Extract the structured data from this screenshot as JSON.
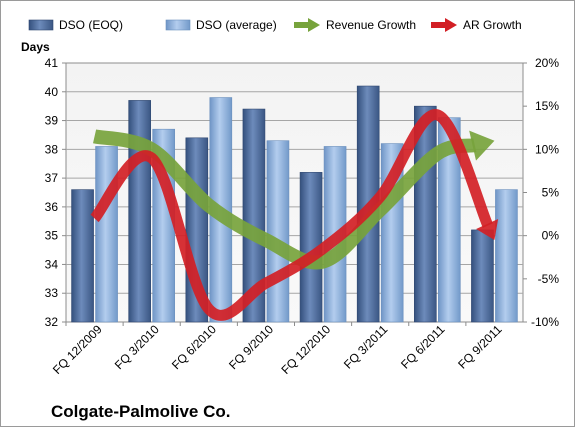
{
  "chart_data": {
    "type": "bar",
    "ylabel": "Days",
    "caption": "Colgate-Palmolive Co.",
    "categories": [
      "FQ 12/2009",
      "FQ 3/2010",
      "FQ 6/2010",
      "FQ 9/2010",
      "FQ 12/2010",
      "FQ 3/2011",
      "FQ 6/2011",
      "FQ 9/2011"
    ],
    "ylim": [
      32,
      41
    ],
    "y_ticks": [
      "32",
      "33",
      "34",
      "35",
      "36",
      "37",
      "38",
      "39",
      "40",
      "41"
    ],
    "y2lim": [
      -10,
      20
    ],
    "y2_ticks": [
      "-10%",
      "-5%",
      "0%",
      "5%",
      "10%",
      "15%",
      "20%"
    ],
    "grid": true,
    "legend_position": "top",
    "bar_series": [
      {
        "name": "DSO (EOQ)",
        "color": "#4f6c9a",
        "values": [
          36.6,
          39.7,
          38.4,
          39.4,
          37.2,
          40.2,
          39.5,
          35.2
        ]
      },
      {
        "name": "DSO (average)",
        "color": "#8eb1dc",
        "values": [
          38.1,
          38.7,
          39.8,
          38.3,
          38.1,
          38.2,
          39.1,
          36.6
        ]
      }
    ],
    "line_series": [
      {
        "name": "Revenue Growth",
        "color": "#77a33c",
        "axis": "secondary",
        "values": [
          11.5,
          10.0,
          3.5,
          -0.5,
          -3.0,
          3.0,
          9.5,
          11.0
        ]
      },
      {
        "name": "AR Growth",
        "color": "#d21f25",
        "axis": "secondary",
        "values": [
          2.0,
          9.0,
          -8.5,
          -5.5,
          -1.5,
          4.5,
          14.0,
          -0.5
        ]
      }
    ]
  }
}
